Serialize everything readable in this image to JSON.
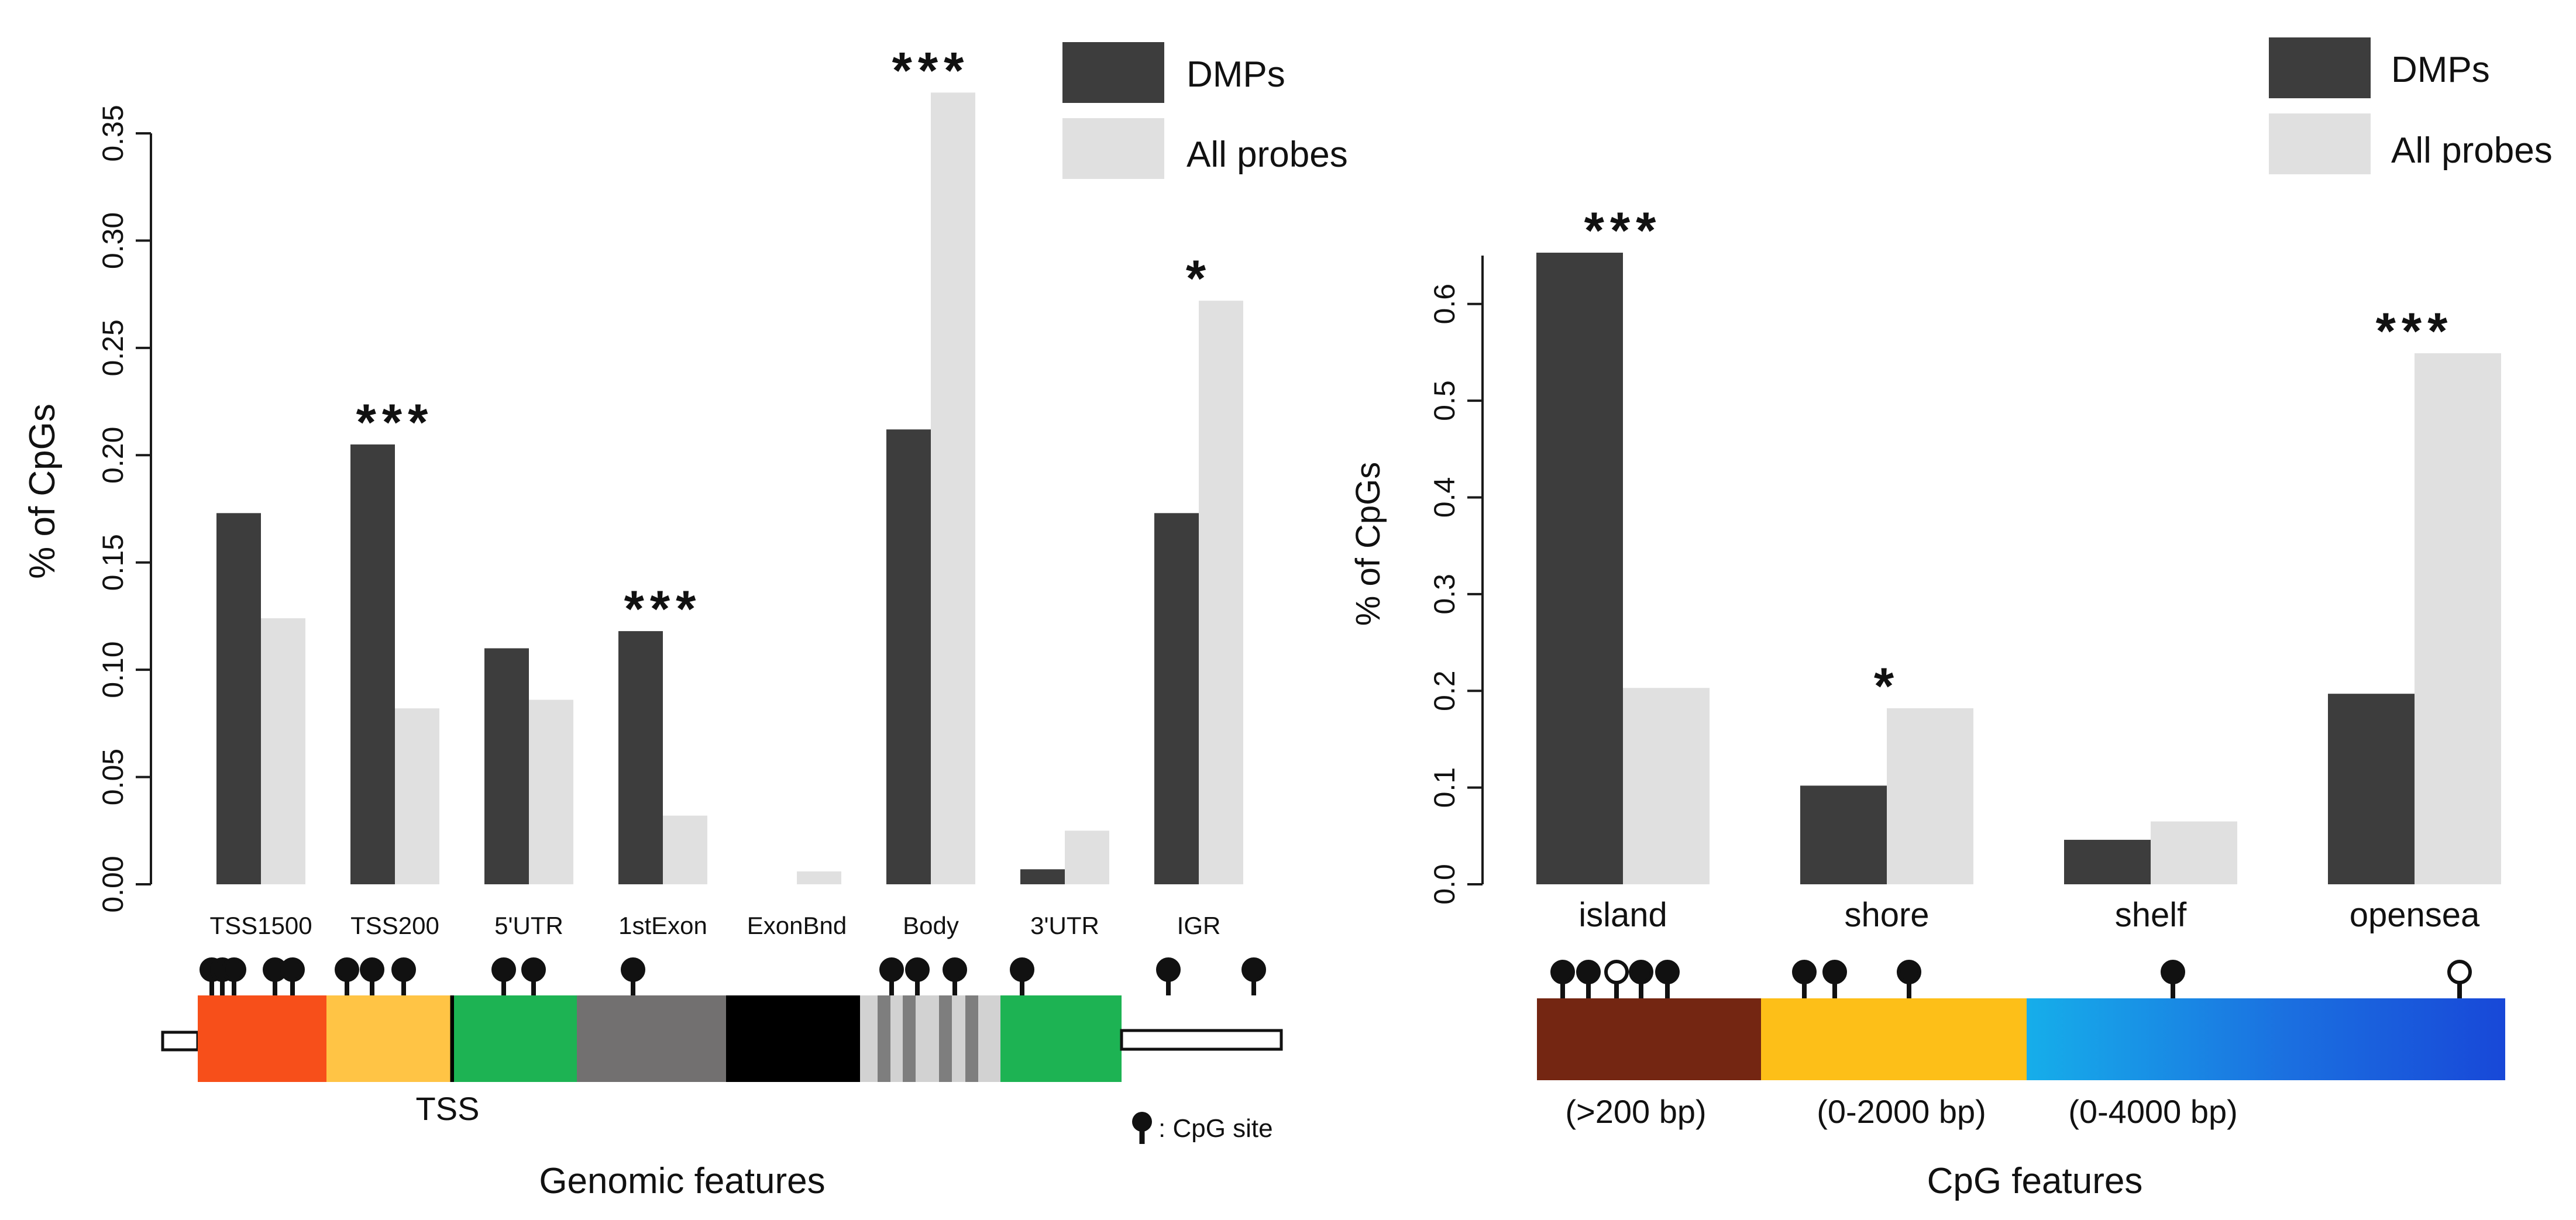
{
  "colors": {
    "dmp": "#3d3d3d",
    "all": "#e0e0e0",
    "tss1500": "#f74f1a",
    "tss200": "#ffc445",
    "utr5": "#1db353",
    "exon1": "#727070",
    "exonbnd": "#000000",
    "body_base": "#d2d2d2",
    "body_stripe": "#7e7e7e",
    "utr3": "#1db353",
    "island": "#742612",
    "shore": "#fdbf18",
    "shelf_start": "#16aeea",
    "shelf_end": "#1848d8"
  },
  "chart_data": [
    {
      "type": "bar",
      "id": "genomic",
      "categories": [
        "TSS1500",
        "TSS200",
        "5'UTR",
        "1stExon",
        "ExonBnd",
        "Body",
        "3'UTR",
        "IGR"
      ],
      "series": [
        {
          "name": "DMPs",
          "values": [
            0.173,
            0.205,
            0.11,
            0.118,
            0.0,
            0.212,
            0.007,
            0.173
          ]
        },
        {
          "name": "All probes",
          "values": [
            0.124,
            0.082,
            0.086,
            0.032,
            0.006,
            0.369,
            0.025,
            0.272
          ]
        }
      ],
      "significance": [
        "",
        "***",
        "",
        "***",
        "",
        "***",
        "",
        "*"
      ],
      "ylabel": "% of CpGs",
      "xlabel": "Genomic features",
      "ylim": [
        0,
        0.35
      ],
      "yticks": [
        "0.00",
        "0.05",
        "0.10",
        "0.15",
        "0.20",
        "0.25",
        "0.30",
        "0.35"
      ],
      "ytick_values": [
        0,
        0.05,
        0.1,
        0.15,
        0.2,
        0.25,
        0.3,
        0.35
      ],
      "legend": [
        "DMPs",
        "All probes"
      ],
      "legend_position": "top-right"
    },
    {
      "type": "bar",
      "id": "cpg",
      "categories": [
        "island",
        "shore",
        "shelf",
        "opensea"
      ],
      "series": [
        {
          "name": "DMPs",
          "values": [
            0.653,
            0.102,
            0.046,
            0.197
          ]
        },
        {
          "name": "All probes",
          "values": [
            0.203,
            0.182,
            0.065,
            0.549
          ]
        }
      ],
      "significance": [
        "***",
        "*",
        "",
        "***"
      ],
      "ylabel": "% of CpGs",
      "xlabel": "CpG features",
      "ylim": [
        0,
        0.65
      ],
      "yticks": [
        "0.0",
        "0.1",
        "0.2",
        "0.3",
        "0.4",
        "0.5",
        "0.6"
      ],
      "ytick_values": [
        0,
        0.1,
        0.2,
        0.3,
        0.4,
        0.5,
        0.6
      ],
      "legend": [
        "DMPs",
        "All probes"
      ],
      "legend_position": "top-right"
    }
  ],
  "annotations": {
    "tss_label": "TSS",
    "cpg_site_label": ": CpG site",
    "island_range": "(>200 bp)",
    "shore_range": "(0-2000 bp)",
    "shelf_range": "(0-4000 bp)"
  }
}
